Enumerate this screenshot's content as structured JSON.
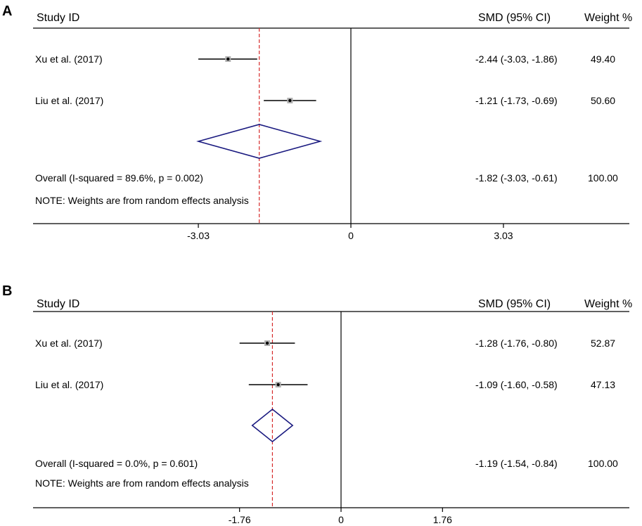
{
  "chart_data": [
    {
      "type": "forest",
      "panel": "A",
      "headers": {
        "study": "Study ID",
        "smd": "SMD (95% CI)",
        "weight": "Weight %"
      },
      "studies": [
        {
          "name": "Xu et al. (2017)",
          "smd": -2.44,
          "lo": -3.03,
          "hi": -1.86,
          "smd_text": "-2.44 (-3.03, -1.86)",
          "weight": "49.40"
        },
        {
          "name": "Liu et al. (2017)",
          "smd": -1.21,
          "lo": -1.73,
          "hi": -0.69,
          "smd_text": "-1.21 (-1.73, -0.69)",
          "weight": "50.60"
        }
      ],
      "overall": {
        "label": "Overall  (I-squared = 89.6%, p = 0.002)",
        "smd": -1.82,
        "lo": -3.03,
        "hi": -0.61,
        "smd_text": "-1.82 (-3.03, -0.61)",
        "weight": "100.00"
      },
      "note": "NOTE: Weights are from random effects analysis",
      "ticks": [
        {
          "value": -3.03,
          "label": "-3.03"
        },
        {
          "value": 0,
          "label": "0"
        },
        {
          "value": 3.03,
          "label": "3.03"
        }
      ],
      "colors": {
        "diamond": "#1a1a80",
        "reference": "#d62b2b"
      }
    },
    {
      "type": "forest",
      "panel": "B",
      "headers": {
        "study": "Study ID",
        "smd": "SMD (95% CI)",
        "weight": "Weight %"
      },
      "studies": [
        {
          "name": "Xu et al. (2017)",
          "smd": -1.28,
          "lo": -1.76,
          "hi": -0.8,
          "smd_text": "-1.28 (-1.76, -0.80)",
          "weight": "52.87"
        },
        {
          "name": "Liu et al. (2017)",
          "smd": -1.09,
          "lo": -1.6,
          "hi": -0.58,
          "smd_text": "-1.09 (-1.60, -0.58)",
          "weight": "47.13"
        }
      ],
      "overall": {
        "label": "Overall  (I-squared = 0.0%, p = 0.601)",
        "smd": -1.19,
        "lo": -1.54,
        "hi": -0.84,
        "smd_text": "-1.19 (-1.54, -0.84)",
        "weight": "100.00"
      },
      "note": "NOTE: Weights are from random effects analysis",
      "ticks": [
        {
          "value": -1.76,
          "label": "-1.76"
        },
        {
          "value": 0,
          "label": "0"
        },
        {
          "value": 1.76,
          "label": "1.76"
        }
      ],
      "colors": {
        "diamond": "#1a1a80",
        "reference": "#d62b2b"
      }
    }
  ]
}
